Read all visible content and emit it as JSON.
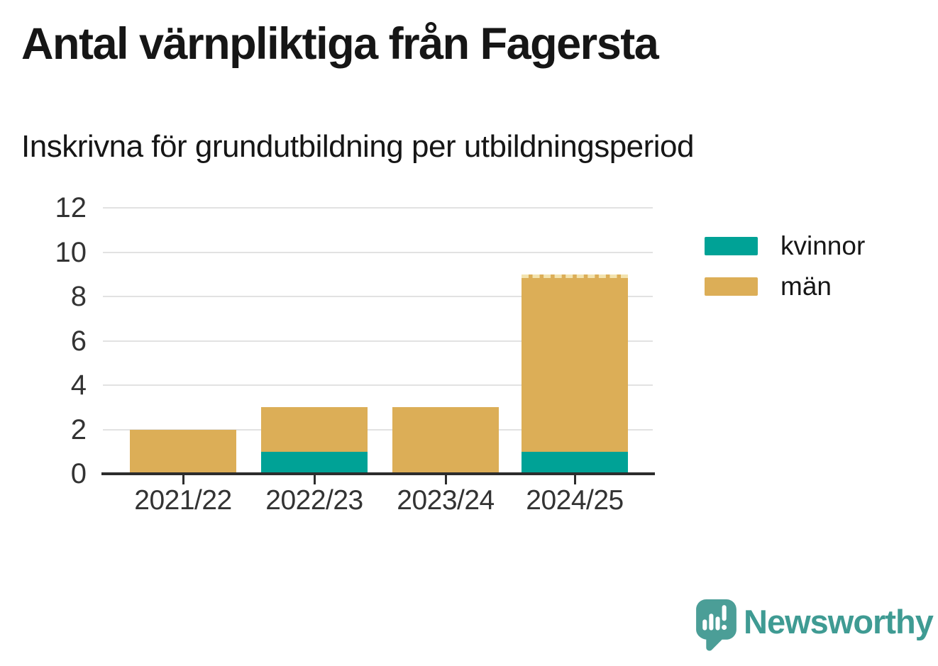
{
  "header": {
    "title": "Antal värnpliktiga från Fagersta",
    "subtitle": "Inskrivna för grundutbildning per utbildningsperiod"
  },
  "chart_data": {
    "type": "bar",
    "stacked": true,
    "title": "Antal värnpliktiga från Fagersta",
    "subtitle": "Inskrivna för grundutbildning per utbildningsperiod",
    "categories": [
      "2021/22",
      "2022/23",
      "2023/24",
      "2024/25"
    ],
    "series": [
      {
        "name": "kvinnor",
        "color": "#00a296",
        "values": [
          0,
          1,
          0,
          1
        ]
      },
      {
        "name": "män",
        "color": "#dcae57",
        "values": [
          2,
          2,
          3,
          8
        ]
      }
    ],
    "totals": [
      2,
      3,
      3,
      9
    ],
    "xlabel": "",
    "ylabel": "",
    "ylim": [
      0,
      12
    ],
    "yticks": [
      0,
      2,
      4,
      6,
      8,
      10,
      12
    ],
    "grid": true,
    "legend_position": "right",
    "last_bar_top_dashed": true
  },
  "legend": {
    "items": [
      {
        "label": "kvinnor",
        "color": "#00a296"
      },
      {
        "label": "män",
        "color": "#dcae57"
      }
    ]
  },
  "footer": {
    "brand": "Newsworthy"
  },
  "colors": {
    "female": "#00a296",
    "male": "#dcae57",
    "axis": "#2d2d2d",
    "grid": "#e2e2e2",
    "text": "#161616",
    "tick_label": "#333333",
    "brand_teal": "#3f9b93",
    "logo_fill": "#4b9e97",
    "dashed_top": "#f3e3af"
  }
}
